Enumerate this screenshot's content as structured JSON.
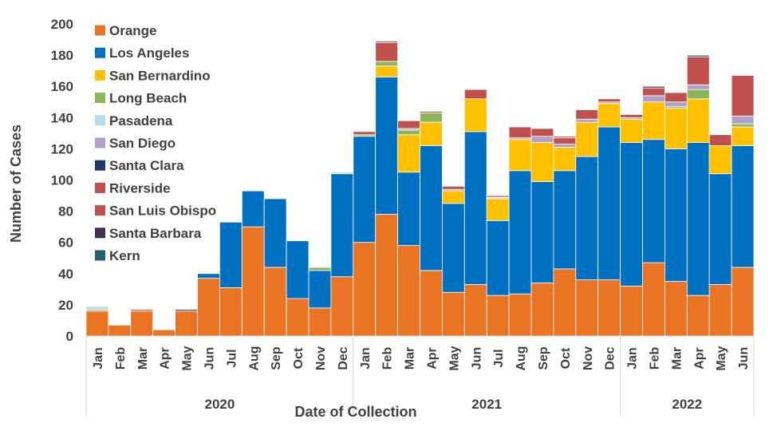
{
  "chart_data": {
    "type": "bar",
    "stacked": true,
    "title": "",
    "xlabel": "Date of Collection",
    "ylabel": "Number of Cases",
    "ylim": [
      0,
      200
    ],
    "yticks": [
      0,
      20,
      40,
      60,
      80,
      100,
      120,
      140,
      160,
      180,
      200
    ],
    "legend_position": "top-left",
    "categories": [
      "Jan",
      "Feb",
      "Mar",
      "Apr",
      "May",
      "Jun",
      "Jul",
      "Aug",
      "Sep",
      "Oct",
      "Nov",
      "Dec",
      "Jan",
      "Feb",
      "Mar",
      "Apr",
      "May",
      "Jun",
      "Jul",
      "Aug",
      "Sep",
      "Oct",
      "Nov",
      "Dec",
      "Jan",
      "Feb",
      "Mar",
      "Apr",
      "May",
      "Jun"
    ],
    "year_groups": [
      {
        "label": "2020",
        "start": 0,
        "count": 12
      },
      {
        "label": "2021",
        "start": 12,
        "count": 12
      },
      {
        "label": "2022",
        "start": 24,
        "count": 6
      }
    ],
    "series": [
      {
        "name": "Orange",
        "color": "#E97424",
        "values": [
          16,
          7,
          16,
          4,
          16,
          37,
          31,
          70,
          44,
          24,
          18,
          38,
          60,
          78,
          58,
          42,
          28,
          33,
          26,
          27,
          34,
          43,
          36,
          36,
          32,
          47,
          35,
          26,
          33,
          44
        ]
      },
      {
        "name": "Los Angeles",
        "color": "#0070C0",
        "values": [
          0,
          0,
          0,
          0,
          0,
          3,
          42,
          23,
          44,
          37,
          24,
          66,
          68,
          88,
          47,
          80,
          57,
          98,
          48,
          79,
          65,
          63,
          79,
          98,
          92,
          79,
          85,
          98,
          71,
          78
        ]
      },
      {
        "name": "San Bernardino",
        "color": "#FFC000",
        "values": [
          0,
          0,
          0,
          0,
          0,
          0,
          0,
          0,
          0,
          0,
          0,
          0,
          0,
          7,
          24,
          15,
          8,
          21,
          14,
          20,
          25,
          15,
          22,
          15,
          15,
          24,
          26,
          28,
          18,
          12
        ]
      },
      {
        "name": "Long Beach",
        "color": "#8DB65C",
        "values": [
          1,
          0,
          0,
          0,
          0,
          0,
          0,
          0,
          0,
          0,
          2,
          0,
          1,
          3,
          3,
          6,
          0,
          0,
          0,
          0,
          0,
          0,
          0,
          0,
          0,
          0,
          1,
          6,
          0,
          2
        ]
      },
      {
        "name": "Pasadena",
        "color": "#B8DDE8",
        "values": [
          2,
          0,
          0,
          0,
          0,
          0,
          0,
          0,
          0,
          0,
          0,
          1,
          0,
          0,
          0,
          0,
          0,
          0,
          1,
          0,
          0,
          0,
          0,
          0,
          0,
          0,
          0,
          0,
          0,
          0
        ]
      },
      {
        "name": "San Diego",
        "color": "#B1A0C7",
        "values": [
          0,
          0,
          0,
          0,
          0,
          0,
          0,
          0,
          0,
          0,
          0,
          0,
          0,
          0,
          1,
          0,
          1,
          0,
          0,
          1,
          4,
          2,
          2,
          1,
          1,
          4,
          3,
          3,
          0,
          5
        ]
      },
      {
        "name": "Santa Clara",
        "color": "#1F3864",
        "values": [
          0,
          0,
          0,
          0,
          1,
          0,
          0,
          0,
          0,
          0,
          0,
          0,
          0,
          0,
          0,
          0,
          0,
          0,
          0,
          0,
          0,
          0,
          0,
          0,
          0,
          0,
          0,
          0,
          0,
          0
        ]
      },
      {
        "name": "Riverside",
        "color": "#C0504D",
        "values": [
          0,
          0,
          1,
          0,
          0,
          0,
          0,
          0,
          0,
          0,
          0,
          0,
          2,
          12,
          5,
          1,
          2,
          6,
          1,
          7,
          5,
          4,
          6,
          2,
          2,
          5,
          6,
          18,
          7,
          26
        ]
      },
      {
        "name": "San Luis Obispo",
        "color": "#C0504D",
        "values": [
          0,
          0,
          0,
          0,
          0,
          0,
          0,
          0,
          0,
          0,
          0,
          0,
          0,
          1,
          0,
          0,
          0,
          0,
          0,
          0,
          0,
          1,
          0,
          0,
          0,
          0,
          0,
          0,
          0,
          0
        ]
      },
      {
        "name": "Santa Barbara",
        "color": "#403151",
        "values": [
          0,
          0,
          0,
          0,
          0,
          0,
          0,
          0,
          0,
          0,
          0,
          0,
          0,
          0,
          0,
          0,
          0,
          0,
          0,
          0,
          0,
          0,
          0,
          0,
          0,
          1,
          0,
          0,
          0,
          0
        ]
      },
      {
        "name": "Kern",
        "color": "#215F6A",
        "values": [
          0,
          0,
          0,
          0,
          0,
          0,
          0,
          0,
          0,
          0,
          0,
          0,
          0,
          0,
          0,
          0,
          0,
          0,
          0,
          0,
          0,
          0,
          0,
          0,
          0,
          0,
          0,
          1,
          0,
          0
        ]
      }
    ]
  }
}
